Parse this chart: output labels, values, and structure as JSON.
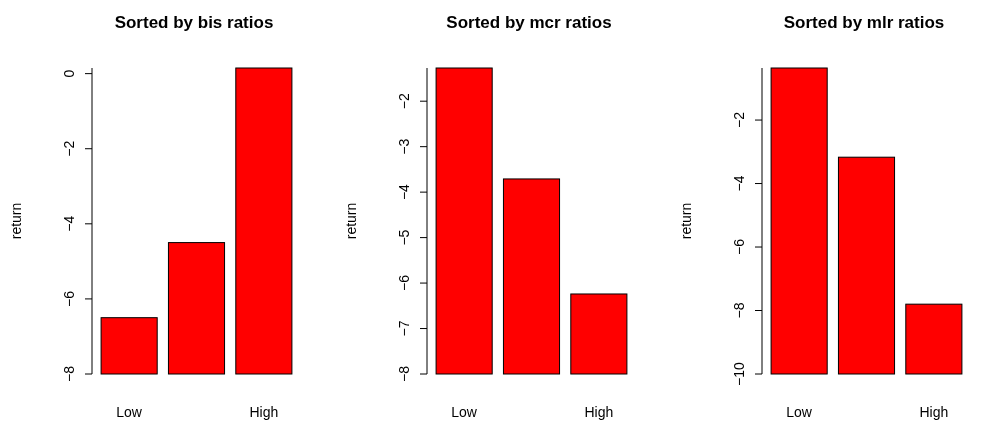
{
  "chart_data": [
    {
      "type": "bar",
      "title": "Sorted by bis ratios",
      "ylabel": "return",
      "categories": [
        "Low",
        null,
        "High"
      ],
      "base": [
        -8,
        -8,
        -8
      ],
      "values": [
        1.5,
        3.5,
        8.15
      ],
      "color": "#ff0000",
      "ylim": [
        -8,
        0.15
      ],
      "yticks": [
        -8,
        -6,
        -4,
        -2,
        0
      ]
    },
    {
      "type": "bar",
      "title": "Sorted by mcr ratios",
      "ylabel": "return",
      "categories": [
        "Low",
        null,
        "High"
      ],
      "base": [
        -8,
        -8,
        -8
      ],
      "values": [
        6.73,
        4.29,
        1.76
      ],
      "color": "#ff0000",
      "ylim": [
        -8,
        -1.27
      ],
      "yticks": [
        -8,
        -7,
        -6,
        -5,
        -4,
        -3,
        -2
      ]
    },
    {
      "type": "bar",
      "title": "Sorted by mlr ratios",
      "ylabel": "return",
      "categories": [
        "Low",
        null,
        "High"
      ],
      "base": [
        -10,
        -10,
        -10
      ],
      "values": [
        9.64,
        6.83,
        2.2
      ],
      "color": "#ff0000",
      "ylim": [
        -10,
        -0.36
      ],
      "yticks": [
        -10,
        -8,
        -6,
        -4,
        -2
      ]
    }
  ]
}
